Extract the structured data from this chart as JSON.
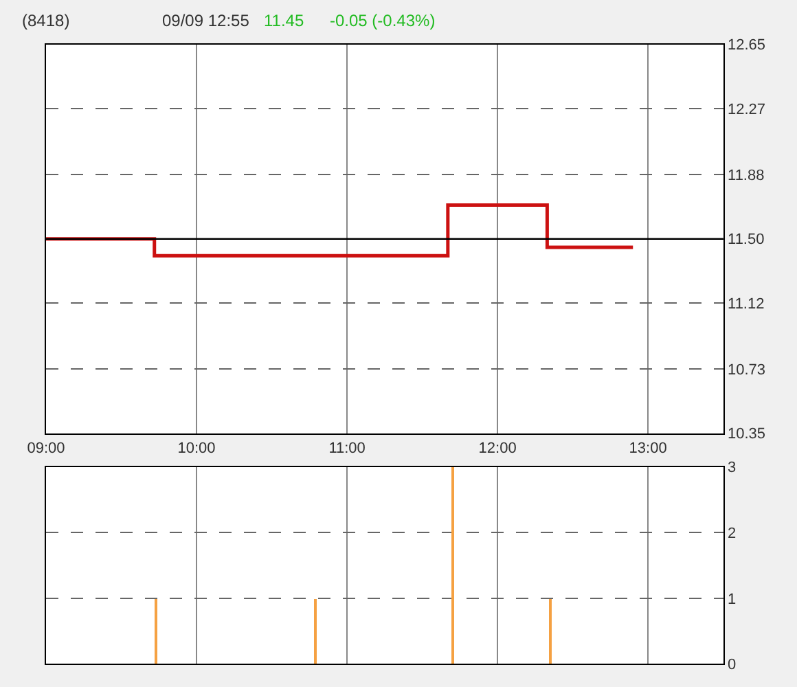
{
  "chart_data": [
    {
      "type": "step",
      "title": "(8418)",
      "annotations": [
        "09/09 12:55",
        "11.45",
        "-0.05 (-0.43%)"
      ],
      "x": [
        9,
        9.72,
        11.67,
        12.33,
        12.9
      ],
      "series": [
        {
          "color": "#cc1111",
          "values": [
            11.5,
            11.4,
            11.7,
            11.45,
            11.45
          ]
        }
      ],
      "xlim": [
        9,
        13.5
      ],
      "xticks": [
        {
          "value": 9,
          "label": "09:00"
        },
        {
          "value": 10,
          "label": "10:00"
        },
        {
          "value": 11,
          "label": "11:00"
        },
        {
          "value": 12,
          "label": "12:00"
        },
        {
          "value": 13,
          "label": "13:00"
        }
      ],
      "ylim": [
        10.35,
        12.65
      ],
      "yticks": [
        10.35,
        10.73,
        11.12,
        {
          "value": 11.5,
          "label": "11.50"
        },
        11.88,
        12.27,
        12.65
      ],
      "ref_lines": [
        {
          "axis": "y",
          "value": 11.5,
          "color": "#000000"
        }
      ],
      "grid": true
    },
    {
      "type": "bar",
      "x": [
        9.73,
        10.79,
        11.7,
        12.35
      ],
      "series": [
        {
          "color": "#f5a142",
          "values": [
            1,
            1,
            3,
            1
          ]
        }
      ],
      "xlim": [
        9,
        13.5
      ],
      "xticks": [
        {
          "value": 9,
          "label": null
        },
        {
          "value": 10,
          "label": null
        },
        {
          "value": 11,
          "label": null
        },
        {
          "value": 12,
          "label": null
        },
        {
          "value": 13,
          "label": null
        }
      ],
      "ylim": [
        0,
        3
      ],
      "yticks": [
        0,
        1,
        2,
        3
      ],
      "tick_labels": "y",
      "grid": true
    }
  ]
}
